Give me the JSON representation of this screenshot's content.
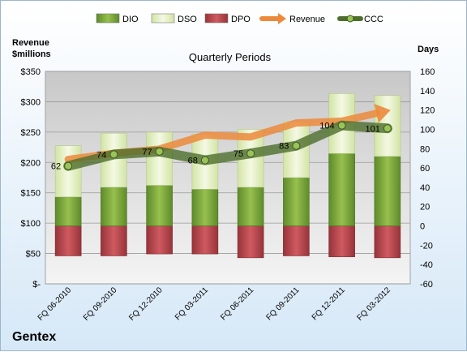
{
  "company": "Gentex",
  "chart_data": {
    "type": "bar",
    "title": "Quarterly Periods",
    "left_axis_label": [
      "Revenue",
      "$millions"
    ],
    "right_axis_label": "Days",
    "categories": [
      "FQ 06-2010",
      "FQ 09-2010",
      "FQ 12-2010",
      "FQ 03-2011",
      "FQ 06-2011",
      "FQ 09-2011",
      "FQ 12-2011",
      "FQ 03-2012"
    ],
    "left_axis": {
      "min": 0,
      "max": 350,
      "step": 50,
      "tick_labels": [
        "$-",
        "$50",
        "$100",
        "$150",
        "$200",
        "$250",
        "$300",
        "$350"
      ]
    },
    "right_axis": {
      "min": -60,
      "max": 160,
      "step": 20,
      "tick_labels": [
        "-60",
        "-40",
        "-20",
        "0",
        "20",
        "40",
        "60",
        "80",
        "100",
        "120",
        "140",
        "160"
      ]
    },
    "series": [
      {
        "name": "DIO",
        "kind": "bar",
        "axis": "days",
        "color": "#7aa23a",
        "values": [
          30,
          40,
          42,
          38,
          40,
          50,
          75,
          72
        ]
      },
      {
        "name": "DSO",
        "kind": "bar",
        "axis": "days",
        "color": "#e4f0c4",
        "values": [
          53,
          56,
          55,
          57,
          60,
          58,
          62,
          63
        ]
      },
      {
        "name": "DPO",
        "kind": "bar",
        "axis": "days",
        "color": "#b8444a",
        "values": [
          -31,
          -31,
          -29,
          -29,
          -33,
          -31,
          -32,
          -33
        ]
      },
      {
        "name": "Revenue",
        "kind": "line",
        "axis": "revenue",
        "color": "#ec8a3c",
        "values": [
          205,
          215,
          222,
          245,
          242,
          265,
          268,
          285
        ]
      },
      {
        "name": "CCC",
        "kind": "line",
        "axis": "days",
        "color": "#4e6e2c",
        "values": [
          62,
          74,
          77,
          68,
          75,
          83,
          104,
          101
        ]
      }
    ],
    "data_labels": [
      "62",
      "74",
      "77",
      "68",
      "75",
      "83",
      "104",
      "101"
    ],
    "legend_position": "top",
    "grid": true
  }
}
